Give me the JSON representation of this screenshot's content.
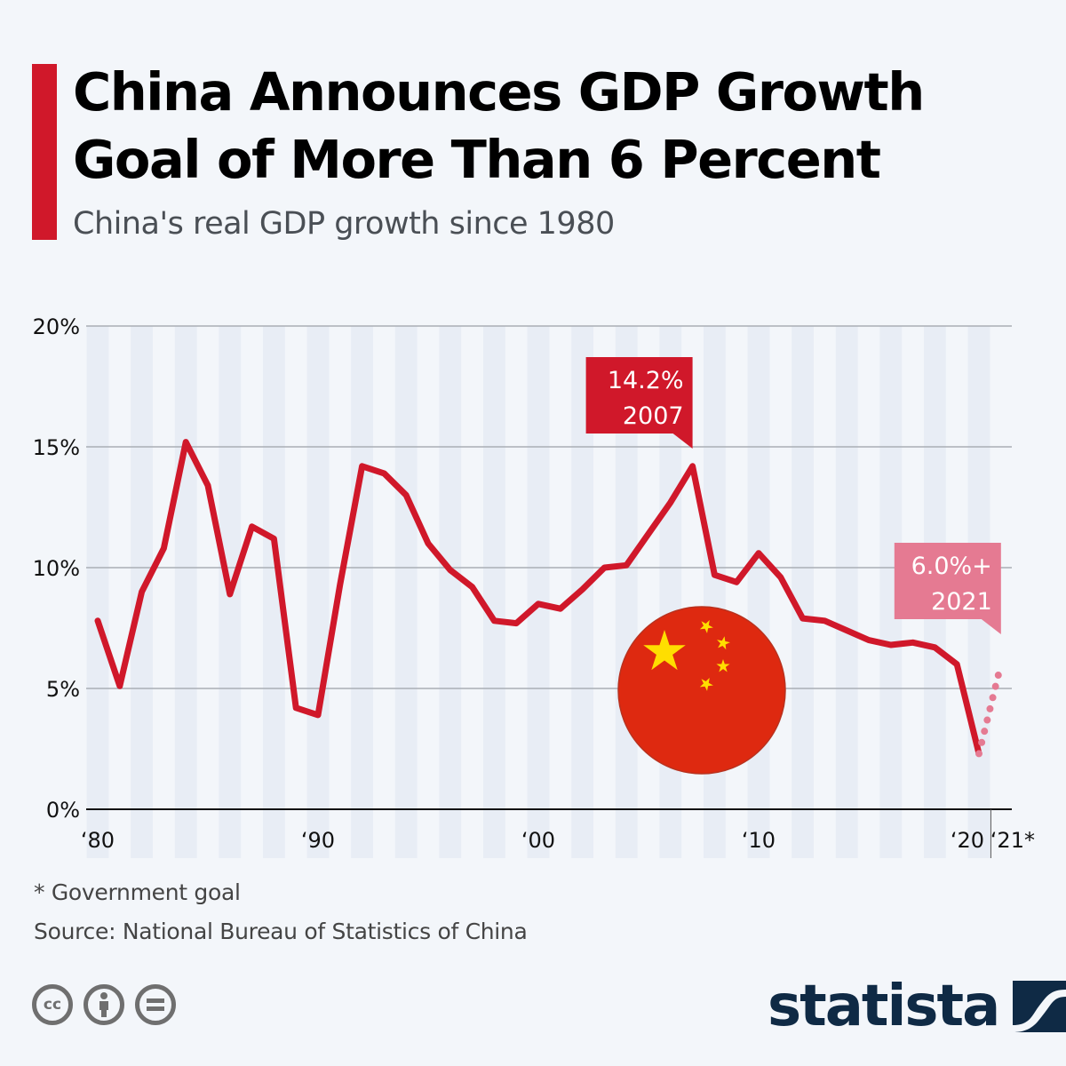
{
  "header": {
    "title": "China Announces GDP Growth Goal of More Than 6 Percent",
    "subtitle": "China's real GDP growth since 1980"
  },
  "colors": {
    "accent": "#d0182a",
    "line": "#d0182a",
    "goal": "#e57a92",
    "stripe": "#e8edf5",
    "background": "#f3f6fa",
    "flag_red": "#de2910",
    "flag_yellow": "#ffde00",
    "logo": "#0f2a45"
  },
  "chart_data": {
    "type": "line",
    "title": "China Announces GDP Growth Goal of More Than 6 Percent",
    "subtitle": "China's real GDP growth since 1980",
    "xlabel": "",
    "ylabel": "",
    "ylim": [
      0,
      20
    ],
    "xlim": [
      1980,
      2021
    ],
    "grid": true,
    "y_ticks": [
      {
        "value": 0,
        "label": "0%"
      },
      {
        "value": 5,
        "label": "5%"
      },
      {
        "value": 10,
        "label": "10%"
      },
      {
        "value": 15,
        "label": "15%"
      },
      {
        "value": 20,
        "label": "20%"
      }
    ],
    "x_ticks": [
      {
        "value": 1980,
        "label": "‘80"
      },
      {
        "value": 1990,
        "label": "‘90"
      },
      {
        "value": 2000,
        "label": "‘00"
      },
      {
        "value": 2010,
        "label": "‘10"
      },
      {
        "value": 2020,
        "label": "‘20"
      },
      {
        "value": 2021,
        "label": "‘21*"
      }
    ],
    "series": [
      {
        "name": "Real GDP growth",
        "style": "solid",
        "x": [
          1980,
          1981,
          1982,
          1983,
          1984,
          1985,
          1986,
          1987,
          1988,
          1989,
          1990,
          1991,
          1992,
          1993,
          1994,
          1995,
          1996,
          1997,
          1998,
          1999,
          2000,
          2001,
          2002,
          2003,
          2004,
          2005,
          2006,
          2007,
          2008,
          2009,
          2010,
          2011,
          2012,
          2013,
          2014,
          2015,
          2016,
          2017,
          2018,
          2019,
          2020
        ],
        "values": [
          7.8,
          5.1,
          9.0,
          10.8,
          15.2,
          13.4,
          8.9,
          11.7,
          11.2,
          4.2,
          3.9,
          9.3,
          14.2,
          13.9,
          13.0,
          11.0,
          9.9,
          9.2,
          7.8,
          7.7,
          8.5,
          8.3,
          9.1,
          10.0,
          10.1,
          11.4,
          12.7,
          14.2,
          9.7,
          9.4,
          10.6,
          9.6,
          7.9,
          7.8,
          7.4,
          7.0,
          6.8,
          6.9,
          6.7,
          6.0,
          2.3
        ]
      },
      {
        "name": "Government goal",
        "style": "dotted",
        "x": [
          2020,
          2021
        ],
        "values": [
          2.3,
          6.0
        ]
      }
    ],
    "annotations": [
      {
        "value_label": "14.2%",
        "year_label": "2007",
        "x": 2007,
        "y": 14.2,
        "color": "#d0182a"
      },
      {
        "value_label": "6.0%+",
        "year_label": "2021",
        "x": 2021,
        "y": 6.0,
        "color": "#e57a92"
      }
    ]
  },
  "footer": {
    "footnote": "* Government goal",
    "source": "Source: National Bureau of Statistics of China",
    "license_icons": [
      "cc-icon",
      "attribution-icon",
      "no-derivatives-icon"
    ],
    "cc_label": "cc",
    "logo_text": "statista"
  }
}
